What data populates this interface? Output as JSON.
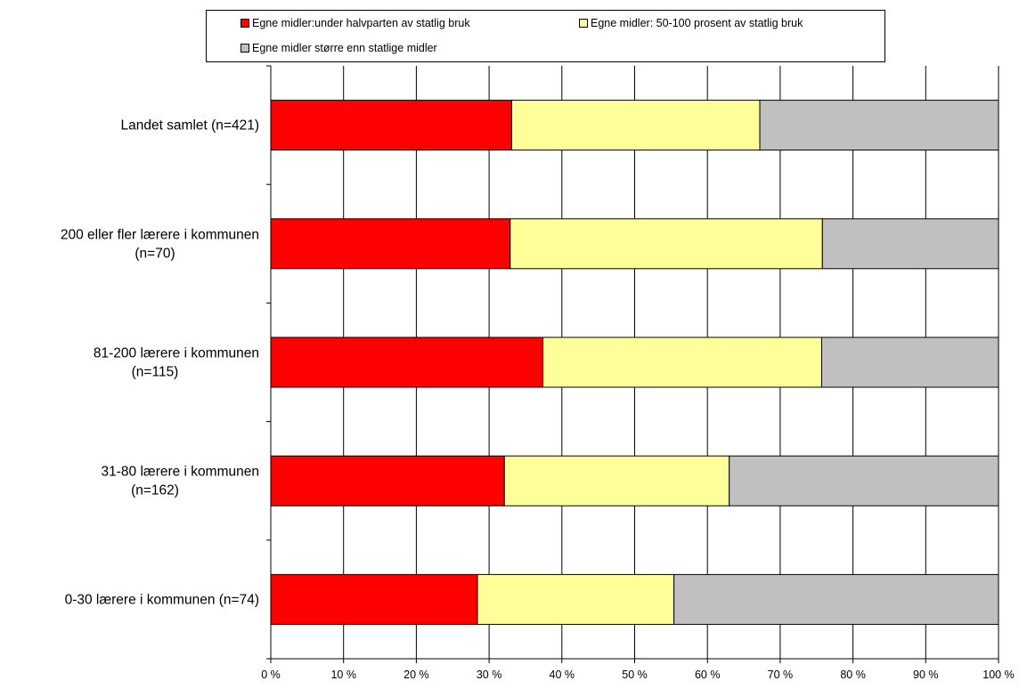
{
  "chart_data": {
    "type": "bar",
    "orientation": "horizontal",
    "stacked": "100%",
    "categories": [
      [
        "Landet samlet (n=421)"
      ],
      [
        "200 eller fler lærere i kommunen",
        "(n=70)"
      ],
      [
        "81-200 lærere i kommunen",
        "(n=115)"
      ],
      [
        "31-80 lærere i kommunen",
        "(n=162)"
      ],
      [
        "0-30 lærere i kommunen (n=74)"
      ]
    ],
    "series": [
      {
        "name": "Egne midler:under halvparten av statlig bruk",
        "color": "#ff0000",
        "values": [
          33.1,
          32.9,
          37.4,
          32.1,
          28.4
        ]
      },
      {
        "name": "Egne midler: 50-100 prosent av statlig bruk",
        "color": "#ffff99",
        "values": [
          34.1,
          42.9,
          38.3,
          30.9,
          27.0
        ]
      },
      {
        "name": "Egne midler større enn statlige midler",
        "color": "#c0c0c0",
        "values": [
          32.8,
          24.2,
          24.3,
          37.0,
          44.6
        ]
      }
    ],
    "xlim": [
      0,
      100
    ],
    "xticks": [
      "0 %",
      "10 %",
      "20 %",
      "30 %",
      "40 %",
      "50 %",
      "60 %",
      "70 %",
      "80 %",
      "90 %",
      "100 %"
    ],
    "grid": true,
    "legend": "top"
  }
}
